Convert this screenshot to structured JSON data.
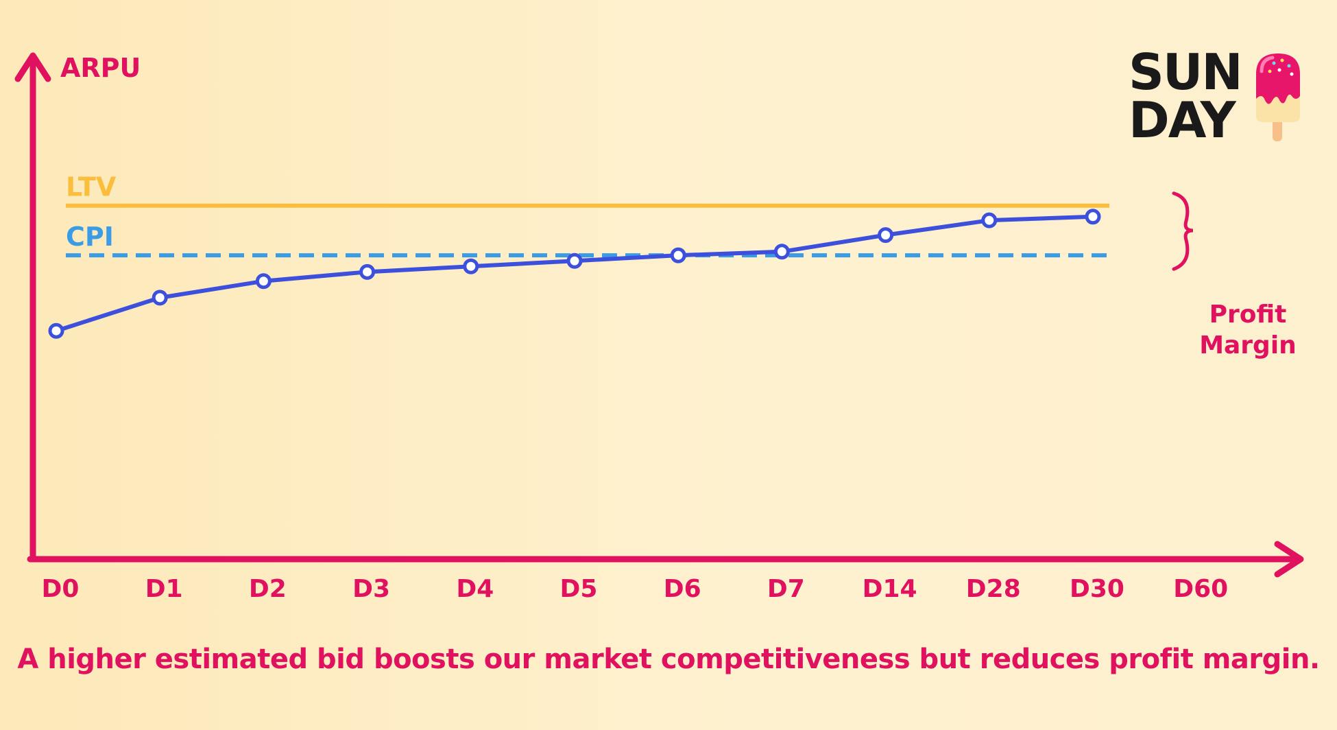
{
  "chart_data": {
    "type": "line",
    "ylabel": "ARPU",
    "categories": [
      "D0",
      "D1",
      "D2",
      "D3",
      "D4",
      "D5",
      "D6",
      "D7",
      "D14",
      "D28",
      "D30",
      "D60"
    ],
    "series": [
      {
        "values": [
          0.62,
          0.71,
          0.755,
          0.78,
          0.795,
          0.81,
          0.825,
          0.835,
          0.88,
          0.92,
          0.93,
          null
        ]
      }
    ],
    "reference_lines": [
      {
        "label": "LTV",
        "value": 0.96,
        "color": "#fbbd3c",
        "style": "solid"
      },
      {
        "label": "CPI",
        "value": 0.825,
        "color": "#3b9ce6",
        "style": "dashed"
      }
    ],
    "annotation": {
      "line1": "Profit",
      "line2": "Margin"
    },
    "ylim": [
      0,
      1.36
    ],
    "grid": false,
    "colors": {
      "axis": "#e0115f",
      "line": "#3d50dc",
      "marker_fill": "#ffffff"
    }
  },
  "caption": "A higher estimated bid boosts our market competitiveness but reduces profit margin.",
  "logo": {
    "line1": "SUN",
    "line2": "DAY"
  }
}
